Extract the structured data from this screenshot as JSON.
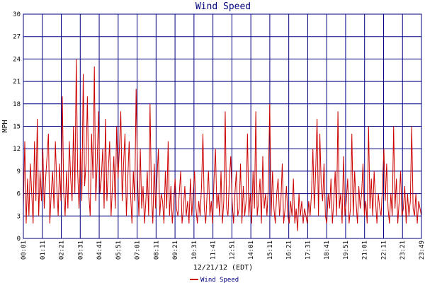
{
  "chart_data": {
    "type": "line",
    "title": "Wind Speed",
    "xlabel": "12/21/12 (EDT)",
    "ylabel": "MPH",
    "ylim": [
      0,
      30
    ],
    "yticks": [
      0,
      3,
      6,
      9,
      12,
      15,
      18,
      21,
      24,
      27,
      30
    ],
    "xticks": [
      "00:01",
      "01:11",
      "02:21",
      "03:31",
      "04:41",
      "05:51",
      "07:01",
      "08:11",
      "09:21",
      "10:31",
      "11:41",
      "12:51",
      "14:01",
      "15:11",
      "16:21",
      "17:31",
      "18:41",
      "19:51",
      "21:01",
      "22:11",
      "23:21",
      "23:49"
    ],
    "grid": true,
    "legend": "bottom",
    "series": [
      {
        "name": "Wind Speed",
        "color": "#cc0000",
        "values": [
          4,
          13,
          2,
          8,
          3,
          10,
          6,
          2,
          13,
          5,
          16,
          3,
          9,
          5,
          12,
          4,
          8,
          11,
          14,
          2,
          6,
          9,
          4,
          13,
          7,
          3,
          10,
          5,
          19,
          6,
          3,
          9,
          4,
          13,
          8,
          5,
          15,
          6,
          24,
          9,
          4,
          12,
          5,
          22,
          7,
          10,
          19,
          6,
          3,
          14,
          8,
          23,
          5,
          10,
          17,
          6,
          8,
          12,
          4,
          16,
          5,
          9,
          13,
          3,
          7,
          11,
          4,
          15,
          8,
          12,
          17,
          5,
          10,
          14,
          3,
          8,
          13,
          6,
          2,
          9,
          5,
          20,
          8,
          3,
          12,
          4,
          7,
          2,
          5,
          9,
          3,
          18,
          6,
          2,
          10,
          4,
          8,
          12,
          3,
          6,
          5,
          2,
          9,
          4,
          13,
          3,
          7,
          2,
          5,
          8,
          4,
          3,
          6,
          9,
          2,
          4,
          7,
          3,
          5,
          2,
          8,
          3,
          6,
          9,
          4,
          2,
          5,
          3,
          7,
          14,
          4,
          2,
          6,
          9,
          3,
          5,
          2,
          8,
          12,
          4,
          6,
          3,
          9,
          2,
          5,
          17,
          4,
          3,
          8,
          11,
          5,
          2,
          6,
          9,
          3,
          4,
          10,
          2,
          7,
          3,
          5,
          14,
          3,
          6,
          2,
          9,
          4,
          17,
          3,
          5,
          8,
          2,
          11,
          4,
          6,
          3,
          7,
          18,
          3,
          9,
          4,
          2,
          6,
          8,
          3,
          5,
          10,
          2,
          4,
          7,
          3,
          2,
          5,
          3,
          8,
          2,
          4,
          1,
          6,
          3,
          5,
          2,
          4,
          3,
          2,
          5,
          3,
          6,
          12,
          4,
          9,
          16,
          3,
          14,
          7,
          5,
          10,
          3,
          2,
          6,
          4,
          8,
          2,
          5,
          9,
          3,
          17,
          4,
          6,
          2,
          11,
          3,
          5,
          8,
          2,
          4,
          14,
          3,
          9,
          5,
          2,
          7,
          4,
          6,
          10,
          3,
          5,
          2,
          15,
          4,
          8,
          3,
          9,
          5,
          2,
          6,
          4,
          3,
          7,
          12,
          5,
          10,
          4,
          2,
          6,
          3,
          15,
          4,
          8,
          2,
          5,
          9,
          3,
          4,
          7,
          2,
          6,
          3,
          5,
          15,
          4,
          3,
          6,
          2,
          5,
          4,
          3
        ]
      }
    ]
  }
}
